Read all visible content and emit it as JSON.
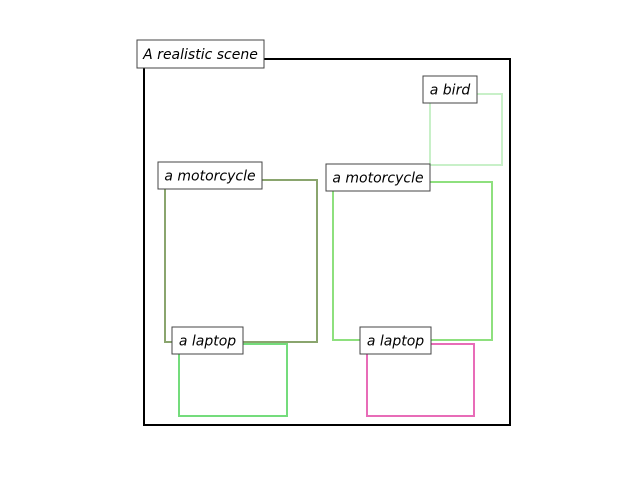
{
  "scene": {
    "title": "A realistic scene",
    "frame_color": "#000000"
  },
  "objects": [
    {
      "id": "bird",
      "label": "a bird",
      "color": "#c8f0c8"
    },
    {
      "id": "moto-left",
      "label": "a motorcycle",
      "color": "#8aa56e"
    },
    {
      "id": "moto-right",
      "label": "a motorcycle",
      "color": "#8ee07e"
    },
    {
      "id": "laptop-left",
      "label": "a laptop",
      "color": "#74dc7c"
    },
    {
      "id": "laptop-right",
      "label": "a laptop",
      "color": "#e86cb8"
    }
  ]
}
